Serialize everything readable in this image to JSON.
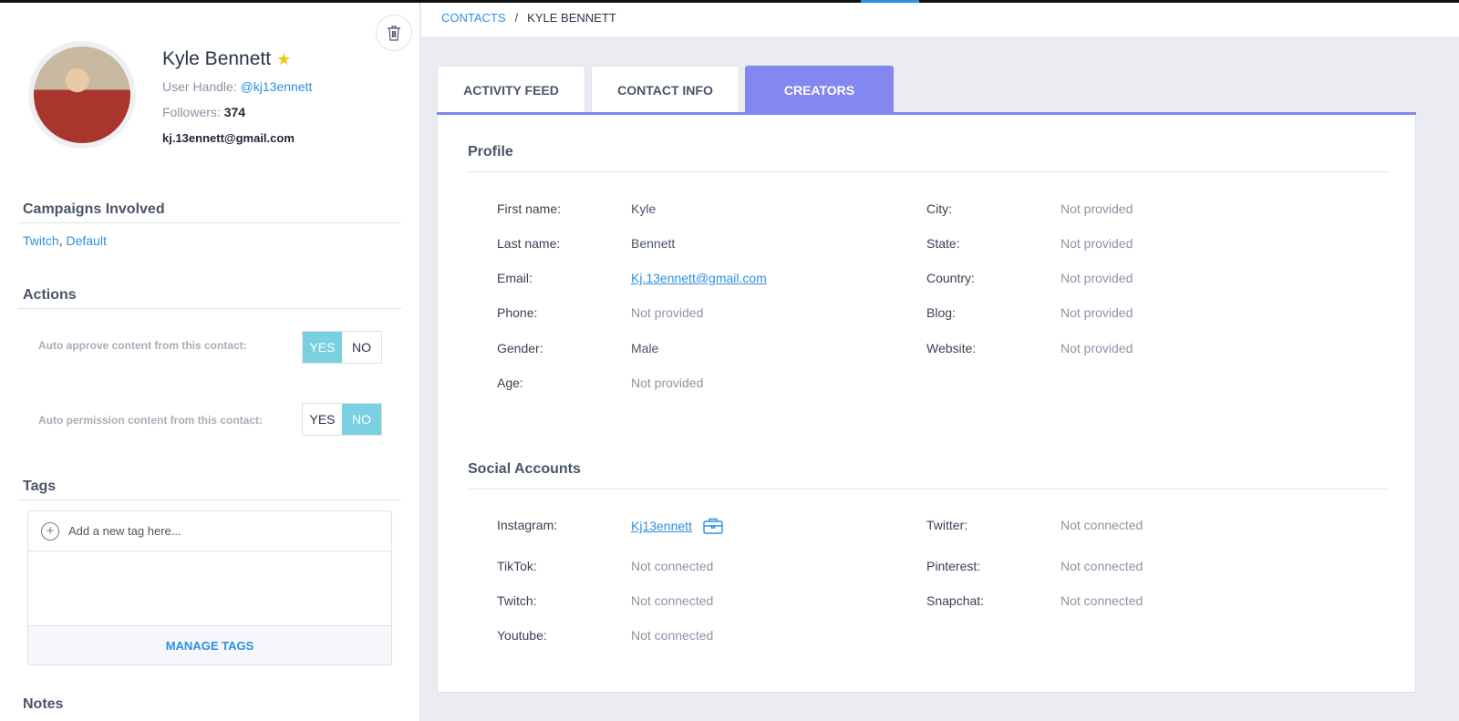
{
  "contact": {
    "name": "Kyle Bennett",
    "handle_label": "User Handle:",
    "handle": "@kj13ennett",
    "followers_label": "Followers:",
    "followers": "374",
    "email": "kj.13ennett@gmail.com"
  },
  "campaigns": {
    "title": "Campaigns Involved",
    "items": [
      "Twitch",
      "Default"
    ]
  },
  "actions": {
    "title": "Actions",
    "auto_approve": {
      "label": "Auto approve content from this contact:",
      "yes": "YES",
      "no": "NO",
      "value": "YES"
    },
    "auto_permission": {
      "label": "Auto permission content from this contact:",
      "yes": "YES",
      "no": "NO",
      "value": "NO"
    }
  },
  "tags": {
    "title": "Tags",
    "placeholder": "Add a new tag here...",
    "manage": "MANAGE TAGS"
  },
  "notes": {
    "title": "Notes"
  },
  "breadcrumb": {
    "root": "CONTACTS",
    "sep": "/",
    "current": "KYLE BENNETT"
  },
  "tabs": [
    {
      "label": "ACTIVITY FEED"
    },
    {
      "label": "CONTACT INFO"
    },
    {
      "label": "CREATORS",
      "active": true
    }
  ],
  "profile": {
    "title": "Profile",
    "left": [
      {
        "label": "First name:",
        "value": "Kyle"
      },
      {
        "label": "Last name:",
        "value": "Bennett"
      },
      {
        "label": "Email:",
        "value": "Kj.13ennett@gmail.com"
      },
      {
        "label": "Phone:",
        "value": "Not provided"
      },
      {
        "label": "Gender:",
        "value": "Male"
      },
      {
        "label": "Age:",
        "value": "Not provided"
      }
    ],
    "right": [
      {
        "label": "City:",
        "value": "Not provided"
      },
      {
        "label": "State:",
        "value": "Not provided"
      },
      {
        "label": "Country:",
        "value": "Not provided"
      },
      {
        "label": "Blog:",
        "value": "Not provided"
      },
      {
        "label": "Website:",
        "value": "Not provided"
      }
    ]
  },
  "social": {
    "title": "Social Accounts",
    "left": [
      {
        "label": "Instagram:",
        "value": "Kj13ennett"
      },
      {
        "label": "TikTok:",
        "value": "Not connected"
      },
      {
        "label": "Twitch:",
        "value": "Not connected"
      },
      {
        "label": "Youtube:",
        "value": "Not connected"
      }
    ],
    "right": [
      {
        "label": "Twitter:",
        "value": "Not connected"
      },
      {
        "label": "Pinterest:",
        "value": "Not connected"
      },
      {
        "label": "Snapchat:",
        "value": "Not connected"
      }
    ]
  },
  "colors": {
    "accent": "#8587f0",
    "link": "#2e8fe0",
    "toggle_on": "#78d0e1",
    "star": "#f5c518"
  }
}
